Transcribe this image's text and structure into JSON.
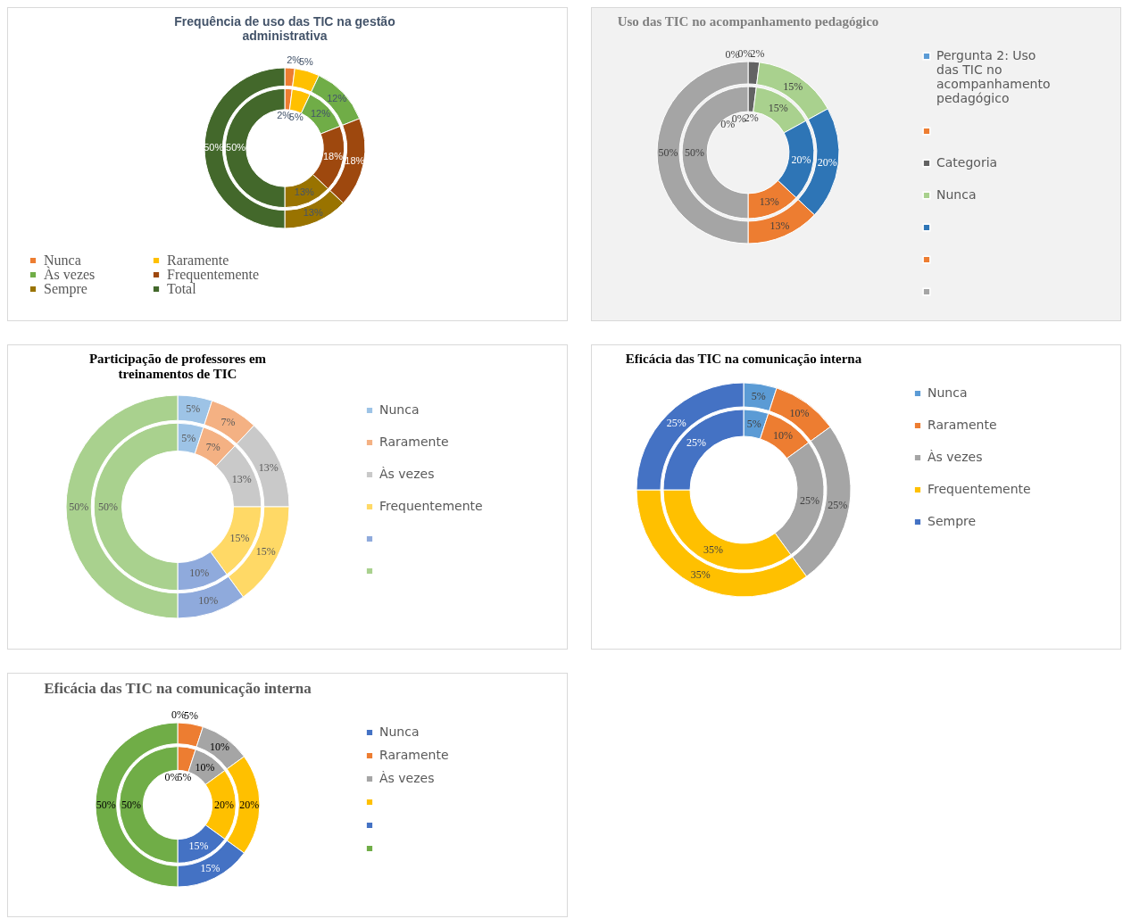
{
  "chart_data": [
    {
      "type": "donut",
      "title": "Frequência de uso das TIC na gestão administrativa",
      "categories": [
        "Nunca",
        "Raramente",
        "Às vezes",
        "Frequentemente",
        "Sempre",
        "Total"
      ],
      "colors": [
        "#ed7d31",
        "#ffc000",
        "#70ad47",
        "#9e480e",
        "#997300",
        "#43682b"
      ],
      "legend": "bottom",
      "series": [
        {
          "values": [
            2,
            5,
            12,
            18,
            13,
            50
          ],
          "value_labels": [
            "2%",
            "5%",
            "12%",
            "18%",
            "13%",
            "50%"
          ]
        },
        {
          "values": [
            2,
            5,
            12,
            18,
            13,
            50
          ],
          "value_labels": [
            "2%",
            "5%",
            "12%",
            "18%",
            "13%",
            "50%"
          ]
        }
      ]
    },
    {
      "type": "donut",
      "title": "Uso das TIC no acompanhamento pedagógico",
      "categories": [
        "Pergunta 2: Uso das TIC no acompanhamento pedagógico",
        null,
        "Categoria",
        "Nunca",
        null,
        null,
        null
      ],
      "colors": [
        "#5b9bd5",
        "#ed7d31",
        "#636363",
        "#a9d18e",
        "#2e75b6",
        "#ed7d31",
        "#a5a5a5"
      ],
      "legend": "right",
      "series": [
        {
          "values": [
            0,
            0,
            2,
            15,
            20,
            13,
            50
          ],
          "value_labels": [
            "0%",
            "0%",
            "2%",
            "15%",
            "20%",
            "13%",
            "50%"
          ]
        },
        {
          "values": [
            0,
            0,
            2,
            15,
            20,
            13,
            50
          ],
          "value_labels": [
            "0%",
            "0%",
            "2%",
            "15%",
            "20%",
            "13%",
            "50%"
          ]
        }
      ]
    },
    {
      "type": "donut",
      "title": "Participação de professores em treinamentos de TIC",
      "categories": [
        "Nunca",
        "Raramente",
        "Às vezes",
        "Frequentemente",
        null,
        null
      ],
      "colors": [
        "#9dc3e6",
        "#f4b183",
        "#c9c9c9",
        "#ffd966",
        "#8faadc",
        "#a9d18e"
      ],
      "legend": "right",
      "series": [
        {
          "values": [
            5,
            7,
            13,
            15,
            10,
            50
          ],
          "value_labels": [
            "5%",
            "7%",
            "13%",
            "15%",
            "10%",
            "50%"
          ]
        },
        {
          "values": [
            5,
            7,
            13,
            15,
            10,
            50
          ],
          "value_labels": [
            "5%",
            "7%",
            "13%",
            "15%",
            "10%",
            "50%"
          ]
        }
      ]
    },
    {
      "type": "donut",
      "title": "Eficácia das TIC na comunicação interna",
      "categories": [
        "Nunca",
        "Raramente",
        "Às vezes",
        "Frequentemente",
        "Sempre"
      ],
      "colors": [
        "#5b9bd5",
        "#ed7d31",
        "#a5a5a5",
        "#ffc000",
        "#4472c4"
      ],
      "legend": "right",
      "series": [
        {
          "values": [
            5,
            10,
            25,
            35,
            25
          ],
          "value_labels": [
            "5%",
            "10%",
            "25%",
            "35%",
            "25%"
          ]
        },
        {
          "values": [
            5,
            10,
            25,
            35,
            25
          ],
          "value_labels": [
            "5%",
            "10%",
            "25%",
            "35%",
            "25%"
          ]
        }
      ]
    },
    {
      "type": "donut",
      "title": "Eficácia das TIC na comunicação interna",
      "categories": [
        "Nunca",
        "Raramente",
        "Às vezes",
        null,
        null,
        null
      ],
      "colors": [
        "#4472c4",
        "#ed7d31",
        "#a5a5a5",
        "#ffc000",
        "#4472c4",
        "#70ad47"
      ],
      "legend": "right",
      "series": [
        {
          "values": [
            0,
            5,
            10,
            20,
            15,
            50
          ],
          "value_labels": [
            "0%",
            "5%",
            "10%",
            "20%",
            "15%",
            "50%"
          ]
        },
        {
          "values": [
            0,
            5,
            10,
            20,
            15,
            50
          ],
          "value_labels": [
            "0%",
            "5%",
            "10%",
            "20%",
            "15%",
            "50%"
          ]
        }
      ]
    }
  ]
}
